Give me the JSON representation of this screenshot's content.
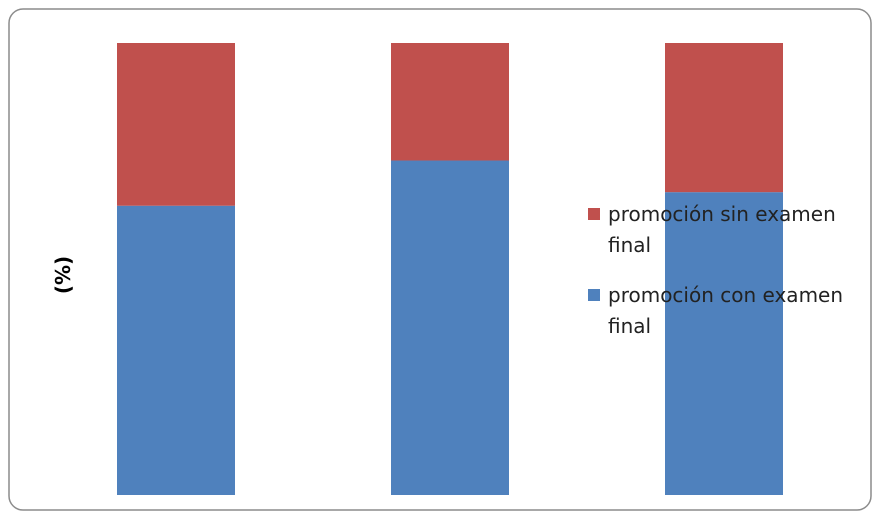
{
  "chart_data": {
    "type": "bar",
    "stacked": true,
    "categories": [
      "",
      "",
      ""
    ],
    "series": [
      {
        "name": "promoción con examen final",
        "values": [
          64,
          74,
          67
        ],
        "color": "#4F81BD"
      },
      {
        "name": "promoción sin examen final",
        "values": [
          36,
          26,
          33
        ],
        "color": "#C0504D"
      }
    ],
    "title": "",
    "xlabel": "",
    "ylabel": "(%)",
    "ylim": [
      0,
      100
    ],
    "grid": false,
    "legend_position": "right",
    "legend": [
      {
        "lines": [
          "promoción sin examen",
          "final"
        ],
        "color": "#C0504D"
      },
      {
        "lines": [
          "promoción con examen",
          "final"
        ],
        "color": "#4F81BD"
      }
    ]
  }
}
